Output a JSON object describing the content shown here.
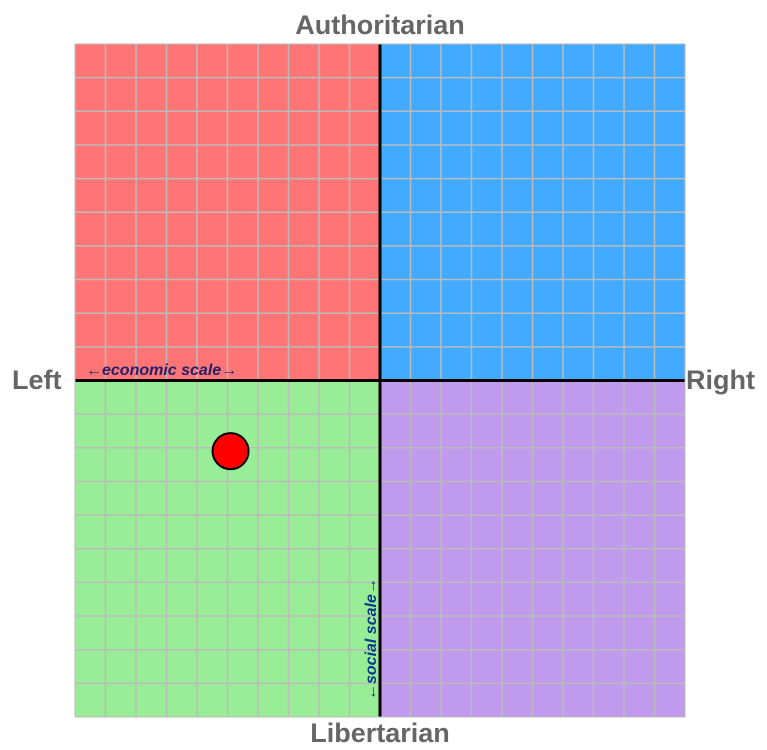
{
  "chart_data": {
    "type": "scatter",
    "labels": {
      "top": "Authoritarian",
      "bottom": "Libertarian",
      "left": "Left",
      "right": "Right",
      "economic_scale": "←economic scale→",
      "social_scale": "←social scale→"
    },
    "xlim": [
      -10,
      10
    ],
    "ylim": [
      -10,
      10
    ],
    "grid": true,
    "grid_divisions": 20,
    "quadrants": {
      "authoritarian_left": "#ff7575",
      "authoritarian_right": "#42aaff",
      "libertarian_left": "#9aed97",
      "libertarian_right": "#c09aec"
    },
    "colors": {
      "grid": "#bbbbbb",
      "axes": "#000000",
      "economic_scale_text": "#22226b",
      "social_scale_text": "#0a3a8a",
      "point": "#ff0000"
    },
    "points": [
      {
        "economic": -4.9,
        "social": -2.1
      }
    ]
  }
}
